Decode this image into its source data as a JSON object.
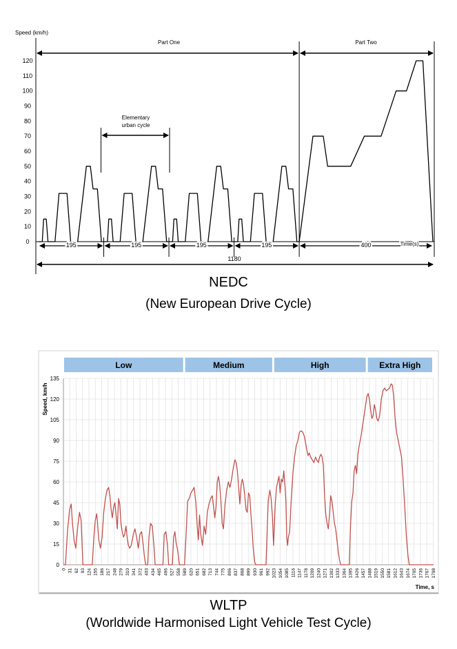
{
  "chart_data": [
    {
      "type": "line",
      "title": "NEDC",
      "subtitle": "(New European Drive Cycle)",
      "ylabel": "Speed (km/h)",
      "xlabel": "Time(s)",
      "ylim": [
        0,
        120
      ],
      "yticks": [
        0,
        10,
        20,
        30,
        40,
        50,
        60,
        70,
        80,
        90,
        100,
        110,
        120
      ],
      "xlim": [
        0,
        1180
      ],
      "grid": false,
      "part_labels": [
        "Part One",
        "Part Two"
      ],
      "elementary_label": [
        "Elementary",
        "urban cycle"
      ],
      "segment_durations": [
        "195",
        "195",
        "195",
        "195",
        "400"
      ],
      "total_duration": "1180",
      "ece_cycle": [
        [
          0,
          0
        ],
        [
          11,
          0
        ],
        [
          15,
          15
        ],
        [
          23,
          15
        ],
        [
          28,
          0
        ],
        [
          49,
          0
        ],
        [
          61,
          32
        ],
        [
          85,
          32
        ],
        [
          96,
          0
        ],
        [
          117,
          0
        ],
        [
          143,
          50
        ],
        [
          155,
          50
        ],
        [
          163,
          35
        ],
        [
          176,
          35
        ],
        [
          188,
          0
        ],
        [
          195,
          0
        ]
      ],
      "eudc": [
        [
          780,
          0
        ],
        [
          821,
          70
        ],
        [
          852,
          70
        ],
        [
          865,
          50
        ],
        [
          934,
          50
        ],
        [
          975,
          70
        ],
        [
          1025,
          70
        ],
        [
          1070,
          100
        ],
        [
          1101,
          100
        ],
        [
          1130,
          120
        ],
        [
          1150,
          120
        ],
        [
          1180,
          0
        ]
      ]
    },
    {
      "type": "line",
      "title": "WLTP",
      "subtitle": "(Worldwide Harmonised Light Vehicle Test Cycle)",
      "ylabel": "Speed, km/h",
      "xlabel": "Time, s",
      "ylim": [
        0,
        135
      ],
      "yticks": [
        0,
        15,
        30,
        45,
        60,
        75,
        90,
        105,
        120,
        135
      ],
      "xlim": [
        0,
        1800
      ],
      "xticks": [
        "0",
        "31",
        "62",
        "93",
        "124",
        "155",
        "186",
        "217",
        "248",
        "279",
        "310",
        "341",
        "372",
        "403",
        "434",
        "465",
        "496",
        "527",
        "558",
        "589",
        "620",
        "651",
        "682",
        "713",
        "744",
        "775",
        "806",
        "837",
        "868",
        "899",
        "930",
        "961",
        "992",
        "1023",
        "1054",
        "1085",
        "1116",
        "1147",
        "1178",
        "1209",
        "1240",
        "1271",
        "1302",
        "1333",
        "1364",
        "1395",
        "1426",
        "1457",
        "1488",
        "1519",
        "1550",
        "1581",
        "1612",
        "1643",
        "1674",
        "1705",
        "1736",
        "1767",
        "1798"
      ],
      "grid": true,
      "phases": [
        {
          "name": "Low",
          "start": 0,
          "end": 589
        },
        {
          "name": "Medium",
          "start": 589,
          "end": 1022
        },
        {
          "name": "High",
          "start": 1022,
          "end": 1477
        },
        {
          "name": "Extra High",
          "start": 1477,
          "end": 1800
        }
      ],
      "points": [
        [
          0,
          0
        ],
        [
          10,
          0
        ],
        [
          20,
          25
        ],
        [
          30,
          40
        ],
        [
          38,
          44
        ],
        [
          44,
          30
        ],
        [
          52,
          18
        ],
        [
          60,
          12
        ],
        [
          70,
          28
        ],
        [
          78,
          38
        ],
        [
          86,
          32
        ],
        [
          95,
          0
        ],
        [
          100,
          0
        ],
        [
          140,
          0
        ],
        [
          148,
          20
        ],
        [
          155,
          32
        ],
        [
          162,
          37
        ],
        [
          166,
          30
        ],
        [
          172,
          18
        ],
        [
          180,
          12
        ],
        [
          188,
          20
        ],
        [
          196,
          38
        ],
        [
          204,
          48
        ],
        [
          212,
          54
        ],
        [
          220,
          56
        ],
        [
          226,
          50
        ],
        [
          232,
          40
        ],
        [
          238,
          34
        ],
        [
          244,
          42
        ],
        [
          250,
          45
        ],
        [
          256,
          36
        ],
        [
          262,
          26
        ],
        [
          268,
          48
        ],
        [
          274,
          44
        ],
        [
          280,
          30
        ],
        [
          286,
          24
        ],
        [
          292,
          20
        ],
        [
          298,
          22
        ],
        [
          304,
          28
        ],
        [
          310,
          20
        ],
        [
          316,
          14
        ],
        [
          322,
          12
        ],
        [
          330,
          14
        ],
        [
          340,
          22
        ],
        [
          348,
          26
        ],
        [
          356,
          20
        ],
        [
          364,
          12
        ],
        [
          372,
          22
        ],
        [
          380,
          24
        ],
        [
          388,
          14
        ],
        [
          394,
          6
        ],
        [
          400,
          0
        ],
        [
          410,
          0
        ],
        [
          416,
          20
        ],
        [
          424,
          30
        ],
        [
          432,
          28
        ],
        [
          440,
          14
        ],
        [
          446,
          0
        ],
        [
          465,
          0
        ],
        [
          484,
          0
        ],
        [
          490,
          22
        ],
        [
          498,
          24
        ],
        [
          506,
          14
        ],
        [
          512,
          0
        ],
        [
          530,
          0
        ],
        [
          536,
          20
        ],
        [
          542,
          24
        ],
        [
          548,
          16
        ],
        [
          556,
          10
        ],
        [
          564,
          0
        ],
        [
          589,
          0
        ],
        [
          596,
          20
        ],
        [
          604,
          46
        ],
        [
          612,
          48
        ],
        [
          620,
          52
        ],
        [
          628,
          54
        ],
        [
          636,
          56
        ],
        [
          644,
          45
        ],
        [
          650,
          30
        ],
        [
          656,
          18
        ],
        [
          662,
          36
        ],
        [
          668,
          22
        ],
        [
          676,
          14
        ],
        [
          684,
          28
        ],
        [
          692,
          22
        ],
        [
          700,
          38
        ],
        [
          708,
          44
        ],
        [
          716,
          48
        ],
        [
          724,
          50
        ],
        [
          730,
          42
        ],
        [
          736,
          34
        ],
        [
          742,
          42
        ],
        [
          748,
          60
        ],
        [
          754,
          64
        ],
        [
          760,
          58
        ],
        [
          766,
          46
        ],
        [
          772,
          30
        ],
        [
          778,
          26
        ],
        [
          786,
          44
        ],
        [
          794,
          54
        ],
        [
          802,
          60
        ],
        [
          810,
          56
        ],
        [
          818,
          62
        ],
        [
          826,
          70
        ],
        [
          834,
          76
        ],
        [
          840,
          74
        ],
        [
          846,
          68
        ],
        [
          852,
          56
        ],
        [
          858,
          44
        ],
        [
          864,
          58
        ],
        [
          870,
          62
        ],
        [
          876,
          58
        ],
        [
          882,
          50
        ],
        [
          888,
          40
        ],
        [
          894,
          38
        ],
        [
          900,
          52
        ],
        [
          906,
          50
        ],
        [
          912,
          36
        ],
        [
          918,
          24
        ],
        [
          924,
          10
        ],
        [
          930,
          2
        ],
        [
          936,
          0
        ],
        [
          960,
          0
        ],
        [
          985,
          0
        ],
        [
          990,
          22
        ],
        [
          996,
          46
        ],
        [
          1004,
          54
        ],
        [
          1010,
          48
        ],
        [
          1016,
          36
        ],
        [
          1022,
          14
        ],
        [
          1030,
          44
        ],
        [
          1036,
          56
        ],
        [
          1042,
          60
        ],
        [
          1048,
          64
        ],
        [
          1054,
          52
        ],
        [
          1060,
          62
        ],
        [
          1066,
          60
        ],
        [
          1072,
          68
        ],
        [
          1078,
          56
        ],
        [
          1082,
          46
        ],
        [
          1086,
          20
        ],
        [
          1090,
          14
        ],
        [
          1094,
          20
        ],
        [
          1100,
          24
        ],
        [
          1108,
          48
        ],
        [
          1116,
          66
        ],
        [
          1124,
          78
        ],
        [
          1132,
          86
        ],
        [
          1140,
          90
        ],
        [
          1148,
          96
        ],
        [
          1156,
          97
        ],
        [
          1164,
          96
        ],
        [
          1172,
          93
        ],
        [
          1178,
          88
        ],
        [
          1184,
          83
        ],
        [
          1190,
          79
        ],
        [
          1196,
          81
        ],
        [
          1202,
          78
        ],
        [
          1210,
          76
        ],
        [
          1218,
          74
        ],
        [
          1226,
          78
        ],
        [
          1232,
          76
        ],
        [
          1240,
          74
        ],
        [
          1246,
          78
        ],
        [
          1252,
          80
        ],
        [
          1258,
          78
        ],
        [
          1264,
          72
        ],
        [
          1270,
          50
        ],
        [
          1276,
          36
        ],
        [
          1282,
          30
        ],
        [
          1288,
          26
        ],
        [
          1294,
          36
        ],
        [
          1300,
          50
        ],
        [
          1306,
          46
        ],
        [
          1312,
          38
        ],
        [
          1318,
          30
        ],
        [
          1324,
          26
        ],
        [
          1330,
          18
        ],
        [
          1336,
          10
        ],
        [
          1342,
          4
        ],
        [
          1348,
          0
        ],
        [
          1370,
          0
        ],
        [
          1390,
          0
        ],
        [
          1396,
          28
        ],
        [
          1402,
          46
        ],
        [
          1408,
          52
        ],
        [
          1414,
          68
        ],
        [
          1420,
          72
        ],
        [
          1426,
          66
        ],
        [
          1432,
          80
        ],
        [
          1438,
          86
        ],
        [
          1446,
          92
        ],
        [
          1454,
          100
        ],
        [
          1462,
          108
        ],
        [
          1470,
          116
        ],
        [
          1476,
          122
        ],
        [
          1482,
          124
        ],
        [
          1488,
          120
        ],
        [
          1494,
          112
        ],
        [
          1500,
          106
        ],
        [
          1506,
          108
        ],
        [
          1512,
          116
        ],
        [
          1518,
          112
        ],
        [
          1524,
          106
        ],
        [
          1530,
          104
        ],
        [
          1538,
          108
        ],
        [
          1546,
          120
        ],
        [
          1554,
          126
        ],
        [
          1562,
          128
        ],
        [
          1570,
          126
        ],
        [
          1578,
          127
        ],
        [
          1586,
          128
        ],
        [
          1594,
          131
        ],
        [
          1600,
          130
        ],
        [
          1606,
          122
        ],
        [
          1612,
          108
        ],
        [
          1620,
          96
        ],
        [
          1628,
          90
        ],
        [
          1636,
          84
        ],
        [
          1644,
          78
        ],
        [
          1652,
          62
        ],
        [
          1660,
          42
        ],
        [
          1668,
          20
        ],
        [
          1676,
          6
        ],
        [
          1682,
          0
        ],
        [
          1800,
          0
        ]
      ]
    }
  ]
}
